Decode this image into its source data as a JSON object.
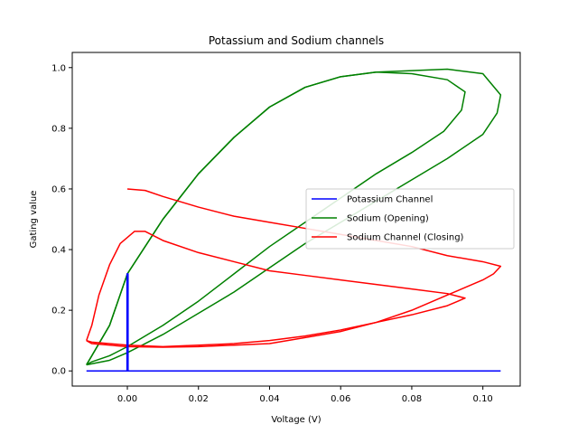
{
  "chart_data": {
    "type": "line",
    "title": "Potassium and Sodium channels",
    "xlabel": "Voltage (V)",
    "ylabel": "Gating value",
    "xlim": [
      -0.0155,
      0.1105
    ],
    "ylim": [
      -0.05,
      1.05
    ],
    "x_ticks": [
      0.0,
      0.02,
      0.04,
      0.06,
      0.08,
      0.1
    ],
    "x_tick_labels": [
      "0.00",
      "0.02",
      "0.04",
      "0.06",
      "0.08",
      "0.10"
    ],
    "y_ticks": [
      0.0,
      0.2,
      0.4,
      0.6,
      0.8,
      1.0
    ],
    "y_tick_labels": [
      "0.0",
      "0.2",
      "0.4",
      "0.6",
      "0.8",
      "1.0"
    ],
    "grid": false,
    "legend_position": "center-right",
    "series": [
      {
        "name": "Potassium Channel",
        "color": "#0000ff",
        "width": 1.5,
        "segments": [
          [
            [
              -0.0115,
              0.0
            ],
            [
              0.105,
              0.0
            ]
          ],
          [
            [
              -0.0001,
              0.0
            ],
            [
              -0.0001,
              0.32
            ],
            [
              0.0002,
              0.32
            ],
            [
              0.0002,
              0.0
            ]
          ]
        ]
      },
      {
        "name": "Sodium (Opening)",
        "color": "#008000",
        "width": 1.5,
        "segments": [
          [
            [
              -0.0115,
              0.02
            ],
            [
              -0.01,
              0.05
            ],
            [
              -0.005,
              0.15
            ],
            [
              0.0,
              0.32
            ],
            [
              0.01,
              0.5
            ],
            [
              0.02,
              0.65
            ],
            [
              0.03,
              0.77
            ],
            [
              0.04,
              0.87
            ],
            [
              0.05,
              0.935
            ],
            [
              0.06,
              0.97
            ],
            [
              0.07,
              0.985
            ],
            [
              0.08,
              0.98
            ],
            [
              0.09,
              0.96
            ],
            [
              0.095,
              0.92
            ],
            [
              0.094,
              0.86
            ],
            [
              0.089,
              0.79
            ],
            [
              0.08,
              0.72
            ],
            [
              0.07,
              0.65
            ],
            [
              0.06,
              0.57
            ],
            [
              0.05,
              0.49
            ],
            [
              0.04,
              0.41
            ],
            [
              0.03,
              0.32
            ],
            [
              0.02,
              0.23
            ],
            [
              0.01,
              0.15
            ],
            [
              0.0,
              0.08
            ],
            [
              -0.005,
              0.05
            ],
            [
              -0.01,
              0.03
            ],
            [
              -0.0115,
              0.02
            ]
          ],
          [
            [
              -0.0115,
              0.02
            ],
            [
              -0.01,
              0.05
            ],
            [
              -0.005,
              0.15
            ],
            [
              0.0,
              0.32
            ],
            [
              0.01,
              0.5
            ],
            [
              0.02,
              0.65
            ],
            [
              0.03,
              0.77
            ],
            [
              0.04,
              0.87
            ],
            [
              0.05,
              0.935
            ],
            [
              0.06,
              0.97
            ],
            [
              0.07,
              0.985
            ],
            [
              0.08,
              0.99
            ],
            [
              0.09,
              0.995
            ],
            [
              0.1,
              0.98
            ],
            [
              0.105,
              0.91
            ],
            [
              0.104,
              0.85
            ],
            [
              0.1,
              0.78
            ],
            [
              0.09,
              0.7
            ],
            [
              0.08,
              0.63
            ],
            [
              0.07,
              0.56
            ],
            [
              0.06,
              0.49
            ],
            [
              0.05,
              0.42
            ],
            [
              0.04,
              0.34
            ],
            [
              0.03,
              0.26
            ],
            [
              0.02,
              0.19
            ],
            [
              0.01,
              0.12
            ],
            [
              0.0,
              0.06
            ],
            [
              -0.005,
              0.035
            ],
            [
              -0.0115,
              0.02
            ]
          ]
        ]
      },
      {
        "name": "Sodium Channel (Closing)",
        "color": "#ff0000",
        "width": 1.5,
        "segments": [
          [
            [
              -0.0115,
              0.1
            ],
            [
              -0.01,
              0.15
            ],
            [
              -0.008,
              0.25
            ],
            [
              -0.005,
              0.35
            ],
            [
              -0.002,
              0.42
            ],
            [
              0.002,
              0.46
            ],
            [
              0.005,
              0.46
            ],
            [
              0.01,
              0.43
            ],
            [
              0.02,
              0.39
            ],
            [
              0.03,
              0.36
            ],
            [
              0.04,
              0.33
            ],
            [
              0.05,
              0.315
            ],
            [
              0.06,
              0.3
            ],
            [
              0.07,
              0.285
            ],
            [
              0.08,
              0.27
            ],
            [
              0.09,
              0.255
            ],
            [
              0.095,
              0.24
            ],
            [
              0.09,
              0.215
            ],
            [
              0.08,
              0.185
            ],
            [
              0.07,
              0.16
            ],
            [
              0.06,
              0.135
            ],
            [
              0.05,
              0.115
            ],
            [
              0.04,
              0.1
            ],
            [
              0.03,
              0.09
            ],
            [
              0.02,
              0.085
            ],
            [
              0.01,
              0.08
            ],
            [
              0.0,
              0.085
            ],
            [
              -0.01,
              0.095
            ],
            [
              -0.0115,
              0.1
            ]
          ],
          [
            [
              0.0,
              0.6
            ],
            [
              0.005,
              0.595
            ],
            [
              0.01,
              0.575
            ],
            [
              0.02,
              0.54
            ],
            [
              0.03,
              0.51
            ],
            [
              0.04,
              0.49
            ],
            [
              0.05,
              0.47
            ],
            [
              0.06,
              0.45
            ],
            [
              0.07,
              0.43
            ],
            [
              0.08,
              0.41
            ],
            [
              0.09,
              0.38
            ],
            [
              0.1,
              0.36
            ],
            [
              0.105,
              0.345
            ],
            [
              0.103,
              0.32
            ],
            [
              0.1,
              0.3
            ],
            [
              0.09,
              0.25
            ],
            [
              0.08,
              0.2
            ],
            [
              0.07,
              0.16
            ],
            [
              0.06,
              0.13
            ],
            [
              0.05,
              0.11
            ],
            [
              0.04,
              0.09
            ],
            [
              0.03,
              0.085
            ],
            [
              0.02,
              0.08
            ],
            [
              0.01,
              0.078
            ],
            [
              0.0,
              0.08
            ],
            [
              -0.01,
              0.09
            ],
            [
              -0.0115,
              0.1
            ]
          ]
        ]
      }
    ]
  }
}
